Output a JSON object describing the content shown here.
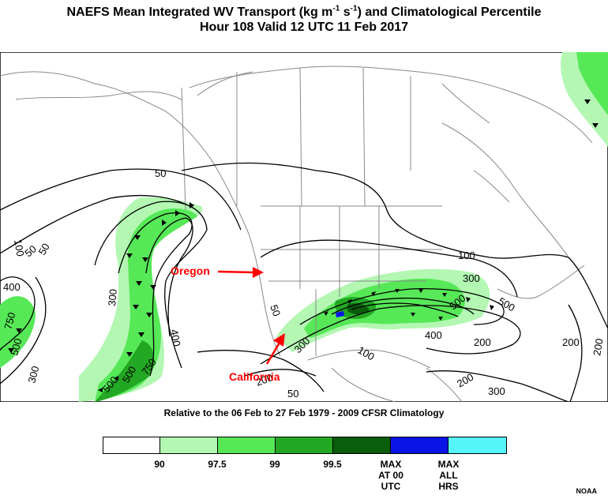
{
  "title": {
    "line1_pre": "NAEFS Mean Integrated WV Transport (kg m",
    "line1_sup1": "-1",
    "line1_mid": " s",
    "line1_sup2": "-1",
    "line1_post": ") and Climatological Percentile",
    "line2": "Hour 108 Valid 12 UTC 11 Feb 2017"
  },
  "subtitle": "Relative to the 06 Feb to 27 Feb 1979 - 2009 CFSR Climatology",
  "colors": {
    "p90": "#ffffff",
    "p97_5": "#b3f7b3",
    "p99": "#57e857",
    "p99_5": "#23a823",
    "max00": "#0a5d0a",
    "maxall_at00": "#0a14e6",
    "maxall": "#55f5fa",
    "annotation": "#ff0000"
  },
  "legend": {
    "labels": [
      "90",
      "97.5",
      "99",
      "99.5",
      "MAX AT 00 UTC",
      "MAX ALL HRS"
    ]
  },
  "annotations": {
    "oregon": "Oregon",
    "california": "California"
  },
  "contour_labels": [
    "50",
    "100",
    "50",
    "50",
    "400",
    "750",
    "500",
    "300",
    "300",
    "400",
    "500",
    "750",
    "500",
    "50",
    "300",
    "100",
    "300",
    "500",
    "400",
    "200",
    "500",
    "200",
    "200",
    "300",
    "100",
    "200",
    "50",
    "200"
  ],
  "credit": "NOAA"
}
